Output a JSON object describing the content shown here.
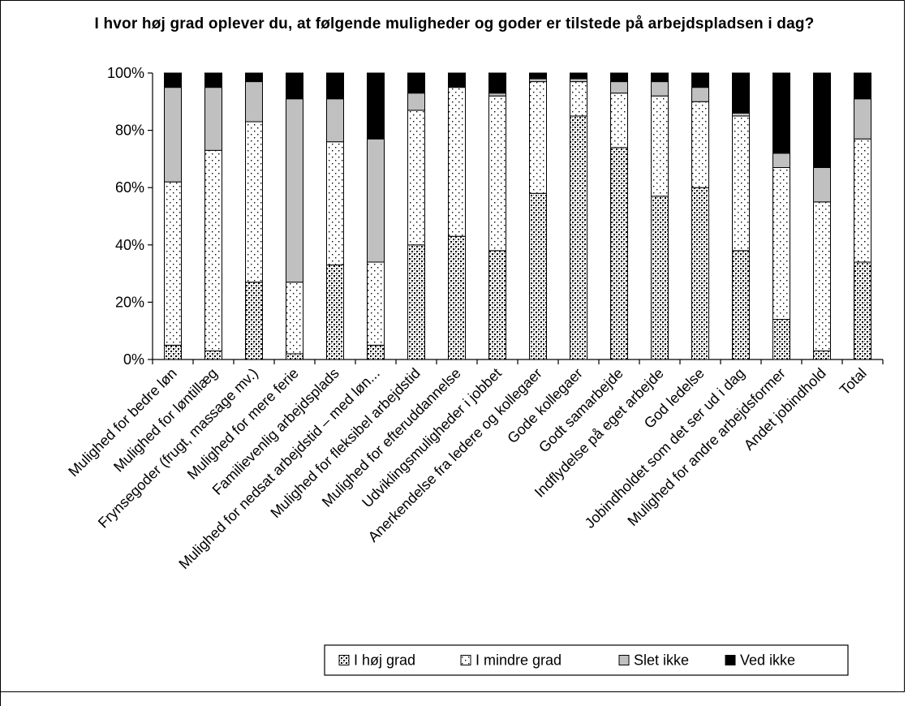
{
  "chart_data": {
    "type": "bar",
    "stacked": true,
    "percent": true,
    "title": "I hvor høj grad oplever du, at følgende muligheder og goder er tilstede på arbejdspladsen i dag?",
    "xlabel": "",
    "ylabel": "",
    "ylim": [
      0,
      100
    ],
    "yticks": [
      "0%",
      "20%",
      "40%",
      "60%",
      "80%",
      "100%"
    ],
    "grid": false,
    "legend_position": "bottom-right",
    "categories": [
      "Mulighed for bedre løn",
      "Mulighed for løntillæg",
      "Frynsegoder (frugt, massage mv.)",
      "Mulighed for mere ferie",
      "Familievenlig arbejdsplads",
      "Mulighed for nedsat arbejdstid – med løn...",
      "Mulighed for fleksibel arbejdstid",
      "Mulighed for efteruddannelse",
      "Udviklingsmuligheder i jobbet",
      "Anerkendelse fra ledere og kollegaer",
      "Gode kollegaer",
      "Godt samarbejde",
      "Indflydelse på eget arbejde",
      "God ledelse",
      "Jobindholdet som det ser ud i dag",
      "Mulighed for andre arbejdsformer",
      "Andet jobindhold",
      "Total"
    ],
    "series": [
      {
        "name": "I høj grad",
        "pattern": "checker",
        "values": [
          5,
          3,
          27,
          2,
          33,
          5,
          40,
          43,
          38,
          58,
          85,
          74,
          57,
          60,
          38,
          14,
          3,
          34
        ]
      },
      {
        "name": "I mindre grad",
        "pattern": "dots",
        "values": [
          57,
          70,
          56,
          25,
          43,
          29,
          47,
          52,
          54,
          39,
          12,
          19,
          35,
          30,
          47,
          53,
          52,
          43
        ]
      },
      {
        "name": "Slet ikke",
        "pattern": "gray",
        "color": "#c0c0c0",
        "values": [
          33,
          22,
          14,
          64,
          15,
          43,
          6,
          0,
          1,
          1,
          1,
          4,
          5,
          5,
          1,
          5,
          12,
          14
        ]
      },
      {
        "name": "Ved ikke",
        "pattern": "black",
        "color": "#000000",
        "values": [
          5,
          5,
          3,
          9,
          9,
          23,
          7,
          5,
          7,
          2,
          2,
          3,
          3,
          5,
          14,
          28,
          33,
          9
        ]
      }
    ]
  }
}
